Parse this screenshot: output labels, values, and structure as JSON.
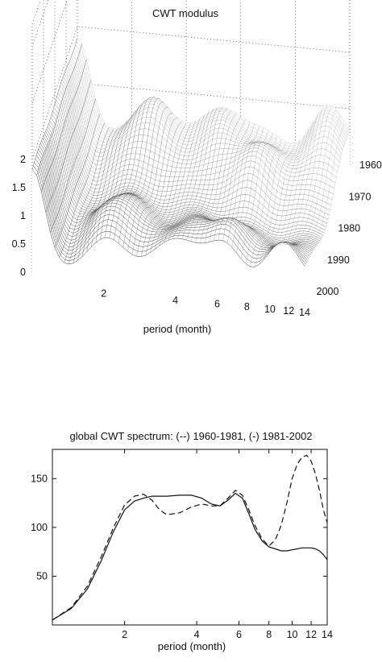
{
  "chart_data": [
    {
      "type": "surface",
      "title": "CWT modulus",
      "xlabel": "period (month)",
      "ylabel": "",
      "zlabel": "",
      "x_scale": "log",
      "x_ticks": [
        "2",
        "4",
        "6",
        "8",
        "10",
        "12",
        "14"
      ],
      "y_ticks": [
        "1960",
        "1970",
        "1980",
        "1990",
        "2000"
      ],
      "z_ticks": [
        "0",
        "0.5",
        "1",
        "1.5",
        "2"
      ],
      "xlim": [
        1,
        14
      ],
      "ylim": [
        1960,
        2002
      ],
      "zlim": [
        0,
        2
      ],
      "grid": true,
      "colormap": "gray"
    },
    {
      "type": "line",
      "title": "global CWT spectrum: (--) 1960-1981, (-) 1981-2002",
      "xlabel": "period (month)",
      "ylabel": "",
      "x_scale": "log",
      "xlim": [
        1,
        14
      ],
      "ylim": [
        0,
        180
      ],
      "x_ticks": [
        "2",
        "4",
        "6",
        "8",
        "10",
        "12",
        "14"
      ],
      "y_ticks": [
        "50",
        "100",
        "150"
      ],
      "series": [
        {
          "name": "1960-1981",
          "style": "dashed",
          "x": [
            1,
            1.2,
            1.4,
            1.6,
            1.8,
            2,
            2.2,
            2.4,
            2.6,
            2.8,
            3,
            3.4,
            3.8,
            4.2,
            4.6,
            5,
            5.4,
            5.8,
            6.2,
            6.6,
            7,
            7.5,
            8,
            8.5,
            9,
            9.5,
            10,
            10.5,
            11,
            11.5,
            12,
            12.5,
            13,
            13.5,
            14
          ],
          "y": [
            5,
            18,
            40,
            70,
            100,
            123,
            132,
            134,
            128,
            118,
            113,
            115,
            121,
            124,
            122,
            122,
            130,
            138,
            133,
            118,
            102,
            88,
            81,
            87,
            102,
            125,
            150,
            165,
            172,
            174,
            168,
            155,
            138,
            118,
            105
          ]
        },
        {
          "name": "1981-2002",
          "style": "solid",
          "x": [
            1,
            1.2,
            1.4,
            1.6,
            1.8,
            2,
            2.2,
            2.4,
            2.6,
            2.8,
            3,
            3.4,
            3.8,
            4.2,
            4.6,
            5,
            5.4,
            5.8,
            6.2,
            6.6,
            7,
            7.5,
            8,
            8.5,
            9,
            9.5,
            10,
            10.5,
            11,
            11.5,
            12,
            12.5,
            13,
            13.5,
            14
          ],
          "y": [
            5,
            17,
            37,
            66,
            96,
            118,
            127,
            130,
            132,
            132,
            132,
            133,
            133,
            130,
            124,
            122,
            128,
            135,
            130,
            114,
            98,
            86,
            80,
            78,
            76,
            76,
            77,
            78,
            79,
            79,
            79,
            78,
            76,
            72,
            67
          ]
        }
      ]
    }
  ]
}
